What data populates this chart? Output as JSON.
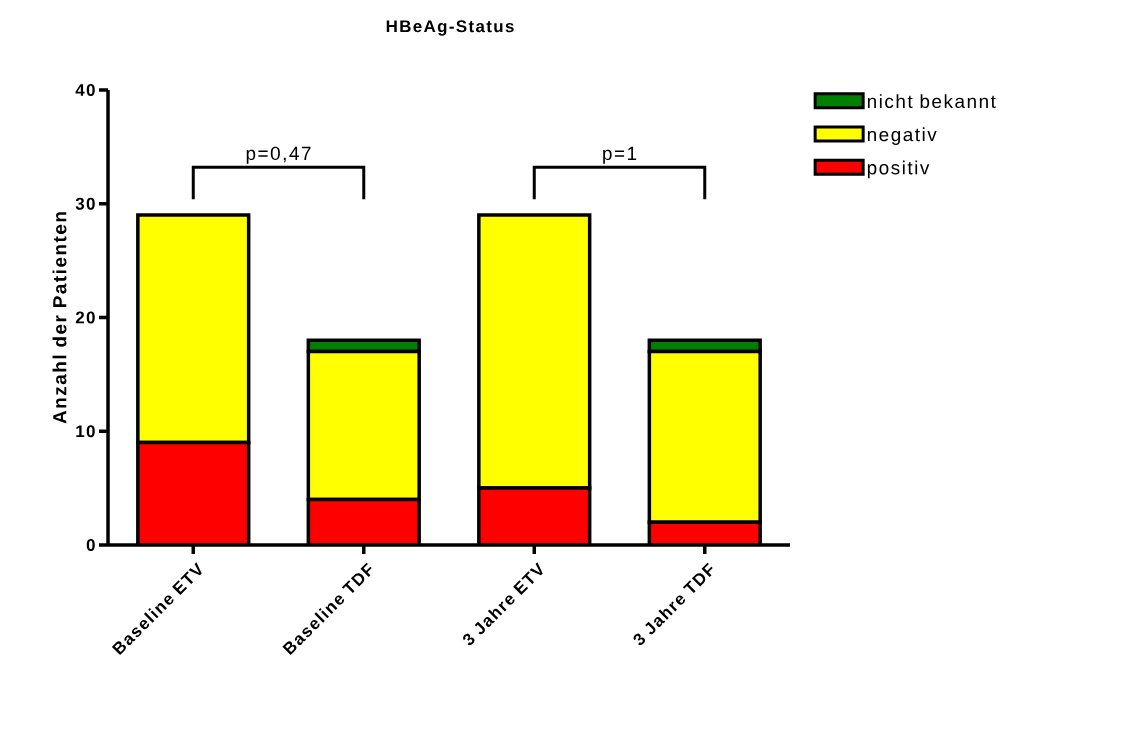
{
  "chart_data": {
    "type": "bar",
    "title": "HBeAg-Status",
    "ylabel": "Anzahl der Patienten",
    "categories": [
      "Baseline ETV",
      "Baseline TDF",
      "3 Jahre ETV",
      "3 Jahre TDF"
    ],
    "stacked": true,
    "series": [
      {
        "name": "positiv",
        "color": "#ff0000",
        "values": [
          9,
          4,
          5,
          2
        ]
      },
      {
        "name": "negativ",
        "color": "#ffff00",
        "values": [
          20,
          13,
          24,
          15
        ]
      },
      {
        "name": "nicht bekannt",
        "color": "#008000",
        "values": [
          0,
          1,
          0,
          1
        ]
      }
    ],
    "ylim": [
      0,
      40
    ],
    "yticks": [
      0,
      10,
      20,
      30,
      40
    ],
    "legend": "top right",
    "annotations": [
      "p=0,47",
      "p=1"
    ]
  }
}
